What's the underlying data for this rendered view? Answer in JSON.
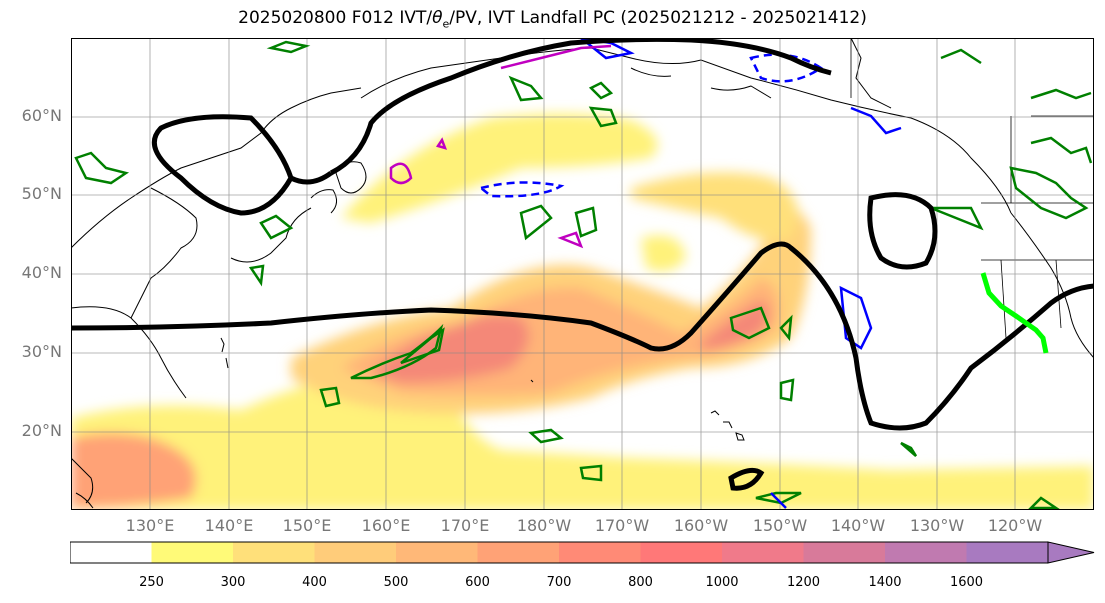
{
  "title": {
    "prefix": "2025020800 F012 IVT/",
    "theta_sym": "θ",
    "theta_sub": "e",
    "suffix": "/PV, IVT Landfall PC (2025021212 - 2025021412)"
  },
  "lat_labels": [
    "60°N",
    "50°N",
    "40°N",
    "30°N",
    "20°N"
  ],
  "lon_labels": [
    "130°E",
    "140°E",
    "150°E",
    "160°E",
    "170°E",
    "180°W",
    "170°W",
    "160°W",
    "150°W",
    "140°W",
    "130°W",
    "120°W"
  ],
  "colorbar": {
    "ticks": [
      "250",
      "300",
      "400",
      "500",
      "600",
      "700",
      "800",
      "1000",
      "1200",
      "1400",
      "1600"
    ],
    "colors": [
      "#ffffff",
      "#fffa78",
      "#ffe07a",
      "#ffcc7a",
      "#ffb878",
      "#ffa276",
      "#ff8a76",
      "#ff7878",
      "#f07a8a",
      "#d87a9a",
      "#c07ab0",
      "#a87ac0"
    ]
  },
  "legend_colors": {
    "ivt_low": "#fffa78",
    "ivt_mid": "#ffb878",
    "ivt_high": "#f07878",
    "pv": "#000000",
    "theta": "#008000",
    "cold": "#0000ff",
    "purple": "#c000c0",
    "landfall": "#00ff00"
  }
}
